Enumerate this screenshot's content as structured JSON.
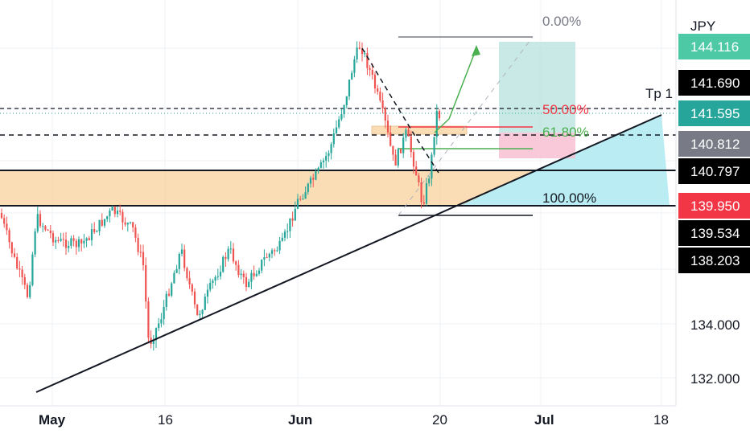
{
  "chart_data": {
    "type": "candlestick",
    "currency_label": "JPY",
    "x_ticks": [
      "May",
      "16",
      "Jun",
      "20",
      "Jul",
      "18"
    ],
    "y_ticks": [
      "134.000",
      "132.000"
    ],
    "price_tags": [
      {
        "label": "144.116",
        "value": 144.116,
        "color": "#4ec9a5",
        "text_color": "#ffffff"
      },
      {
        "label": "141.690",
        "value": 141.69,
        "color": "#000000",
        "text_color": "#ffffff"
      },
      {
        "label": "141.595",
        "value": 141.595,
        "color": "#26a69a",
        "text_color": "#ffffff"
      },
      {
        "label": "140.812",
        "value": 140.812,
        "color": "#787b86",
        "text_color": "#ffffff"
      },
      {
        "label": "140.797",
        "value": 140.797,
        "color": "#000000",
        "text_color": "#ffffff"
      },
      {
        "label": "139.950",
        "value": 139.95,
        "color": "#f23645",
        "text_color": "#ffffff"
      },
      {
        "label": "139.534",
        "value": 139.534,
        "color": "#000000",
        "text_color": "#ffffff"
      },
      {
        "label": "138.203",
        "value": 138.203,
        "color": "#000000",
        "text_color": "#ffffff"
      }
    ],
    "fib_levels": [
      {
        "label": "0.00%",
        "color": "#787b86"
      },
      {
        "label": "50.00%",
        "color": "#f23645"
      },
      {
        "label": "61.80%",
        "color": "#4caf50"
      },
      {
        "label": "100.00%",
        "color": "#131722"
      }
    ],
    "annotations": {
      "tp_label": "Tp 1"
    },
    "colors": {
      "up": "#26a69a",
      "down": "#ef5350",
      "zone": "#f9c784",
      "target": "#b2dfdb",
      "stop": "#f8bbd0",
      "trend_fill": "#b2ebf2"
    }
  }
}
